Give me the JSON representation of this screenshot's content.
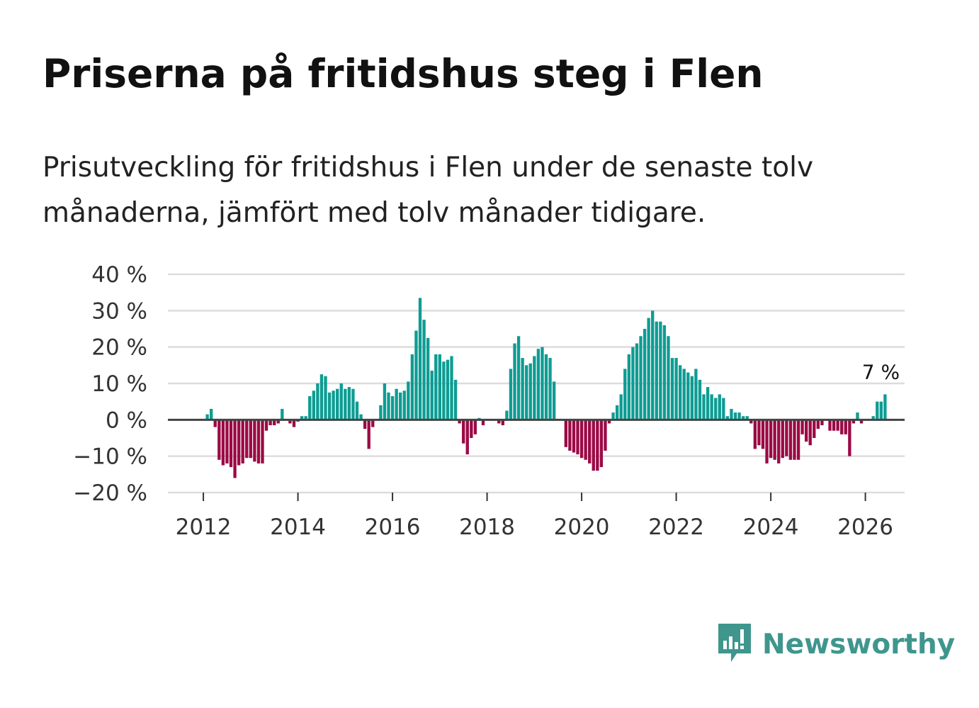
{
  "title": "Priserna på fritidshus steg i Flen",
  "subtitle": "Prisutveckling för fritidshus i Flen under de senaste tolv månaderna, jämfört med tolv månader tidigare.",
  "brand": {
    "name": "Newsworthy",
    "color": "#3f968d",
    "icon": "newsworthy-logo-icon"
  },
  "colors": {
    "positive": "#0e9c93",
    "negative": "#9b0a45",
    "grid": "#dddddd",
    "zero_line": "#444444"
  },
  "chart_data": {
    "type": "bar",
    "title": "Priserna på fritidshus steg i Flen",
    "xlabel": "",
    "ylabel": "",
    "ylim": [
      -20,
      40
    ],
    "y_ticks": [
      40,
      30,
      20,
      10,
      0,
      -10,
      -20
    ],
    "y_tick_labels": [
      "40 %",
      "30 %",
      "20 %",
      "10 %",
      "0 %",
      "−10 %",
      "−20 %"
    ],
    "x_ticks": [
      2012,
      2014,
      2016,
      2018,
      2020,
      2022,
      2024,
      2026
    ],
    "x_tick_labels": [
      "2012",
      "2014",
      "2016",
      "2018",
      "2020",
      "2022",
      "2024",
      "2026"
    ],
    "xlim": [
      2011.25,
      2026.83
    ],
    "grid": true,
    "start": "2012-01",
    "frequency": "monthly",
    "unit": "%",
    "values": [
      0,
      1.5,
      3,
      -2,
      -11,
      -12.5,
      -12,
      -13,
      -16,
      -12.5,
      -12,
      -10.5,
      -10.5,
      -11.5,
      -12,
      -12,
      -3,
      -1.5,
      -1.5,
      -1,
      3,
      0,
      -1,
      -2,
      -0.5,
      1,
      1,
      6.5,
      8,
      10,
      12.5,
      12,
      7.5,
      8,
      8.5,
      10,
      8.5,
      9,
      8.5,
      5,
      1.5,
      -2.5,
      -8,
      -2,
      0,
      4,
      10,
      7.5,
      6.5,
      8.5,
      7.5,
      8,
      10.5,
      18,
      24.5,
      33.5,
      27.5,
      22.5,
      13.5,
      18,
      18,
      16,
      16.5,
      17.5,
      11,
      -1,
      -6.5,
      -9.5,
      -5,
      -4,
      0.5,
      -1.5,
      0,
      0,
      0,
      -1,
      -1.5,
      2.5,
      14,
      21,
      23,
      17,
      15,
      15.5,
      17.5,
      19.5,
      20,
      18,
      17,
      10.5,
      0,
      0,
      -7.5,
      -8.5,
      -9,
      -9.5,
      -10.5,
      -11,
      -12,
      -14,
      -14,
      -13,
      -8.5,
      -1,
      2,
      4,
      7,
      14,
      18,
      20,
      21,
      23,
      25,
      28,
      30,
      27,
      27,
      26,
      23,
      17,
      17,
      15,
      14,
      13,
      12,
      14,
      11,
      7,
      9,
      7,
      6,
      7,
      6,
      1,
      3,
      2,
      2,
      1,
      1,
      -1,
      -8,
      -7,
      -8,
      -12,
      -10.5,
      -11,
      -12,
      -10.5,
      -10,
      -11,
      -11,
      -11,
      -4,
      -6,
      -7,
      -5,
      -2.5,
      -1.5,
      0,
      -3,
      -3,
      -3,
      -4,
      -4,
      -10,
      -1,
      2,
      -1,
      0,
      0,
      1,
      5,
      5,
      7
    ],
    "annotations": [
      {
        "text": "7 %",
        "at": "last"
      }
    ]
  }
}
